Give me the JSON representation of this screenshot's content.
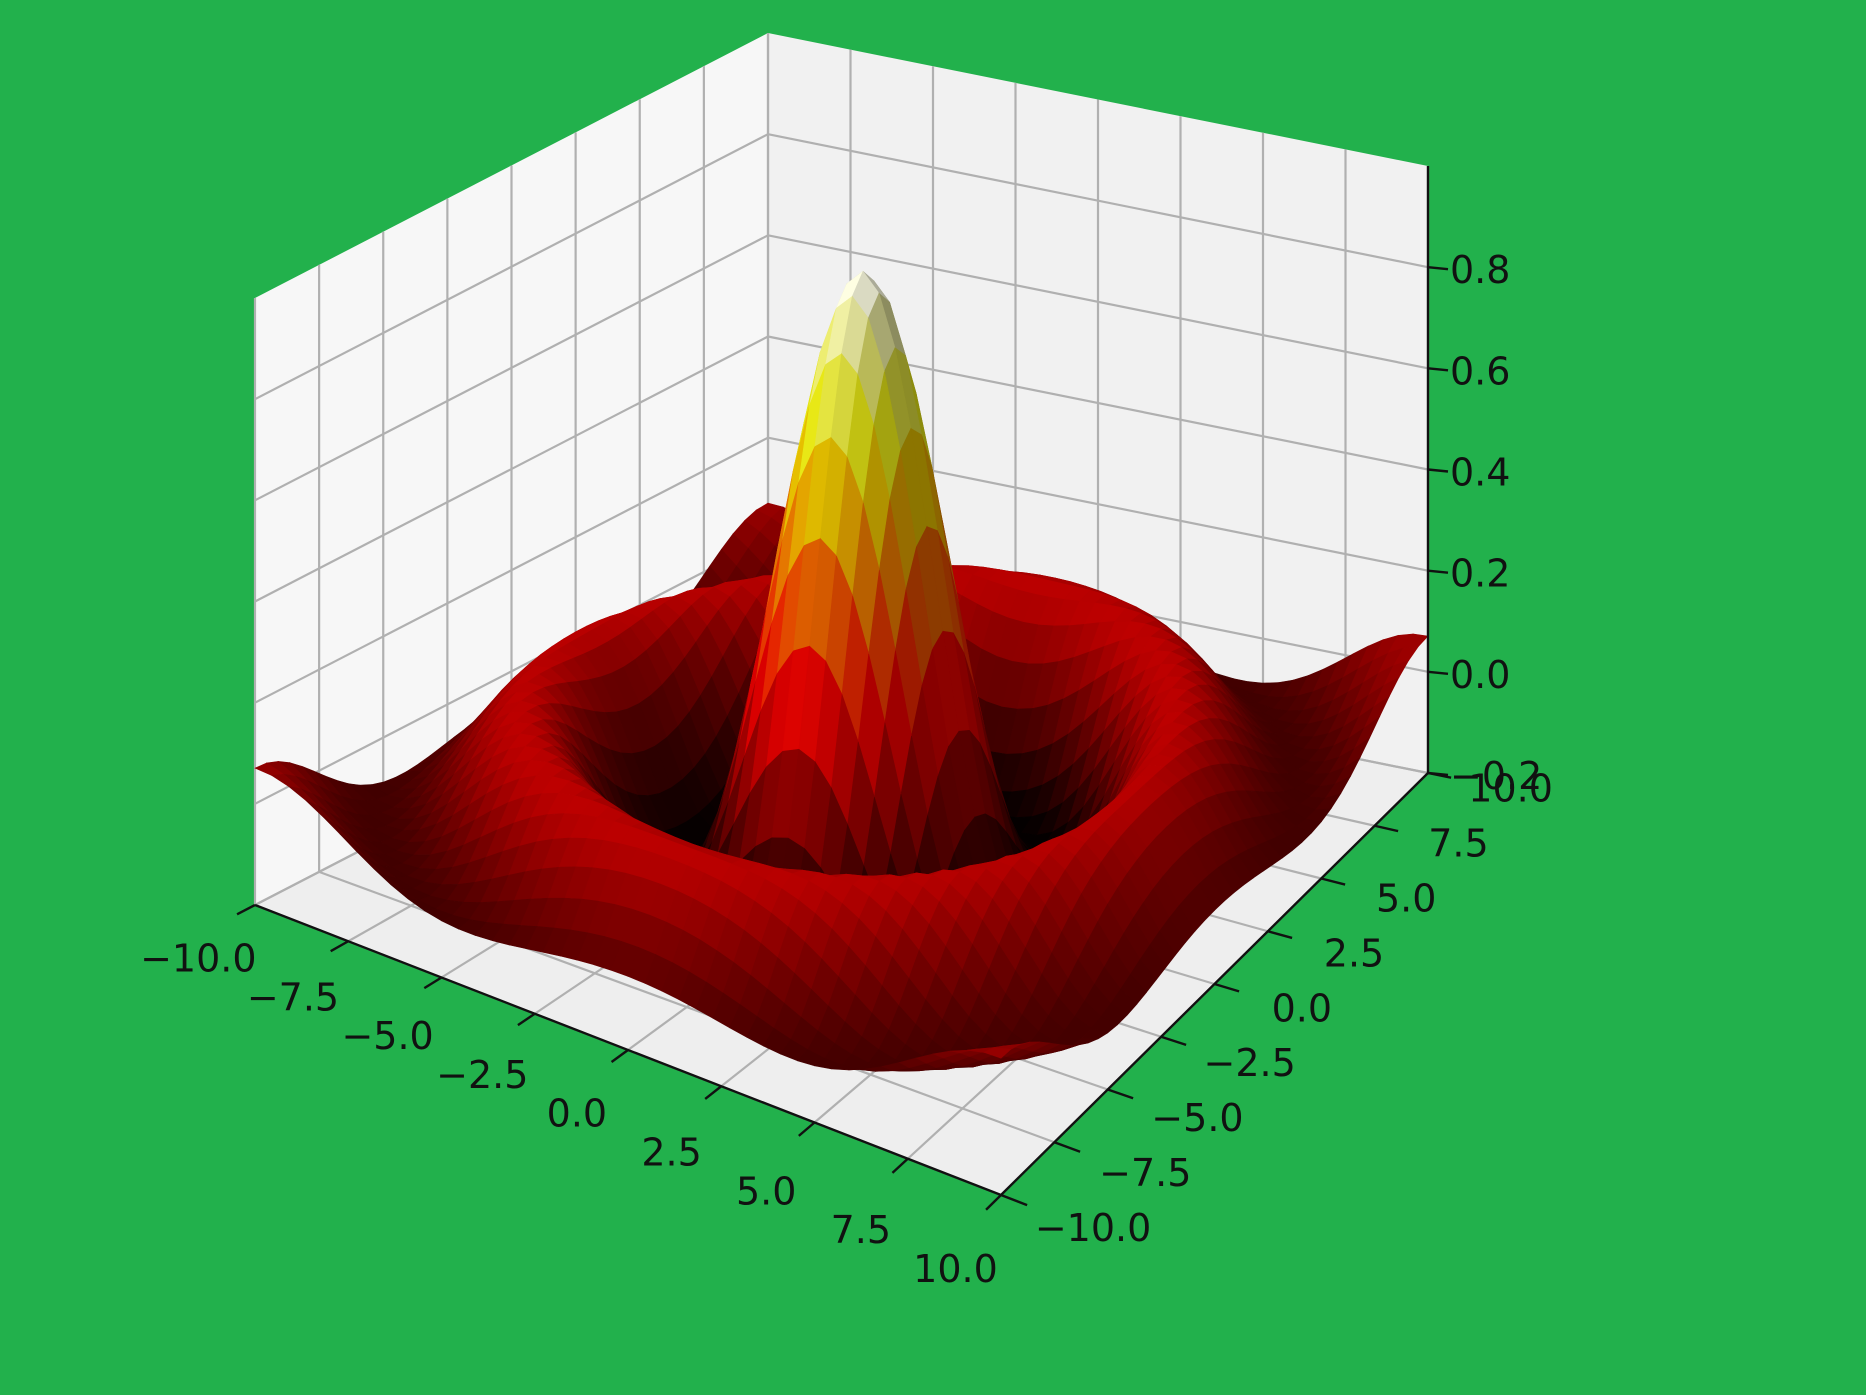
{
  "chart_data": {
    "type": "surface3d",
    "function": "sin(sqrt(x^2 + y^2)) / sqrt(x^2 + y^2)",
    "colormap": "hot",
    "background_color": "#22b14c",
    "pane_colors": {
      "left": "#f7f7f7",
      "right": "#f1f1f1",
      "floor": "#eeeeee"
    },
    "grid": true,
    "x": {
      "range": [
        -10,
        10
      ],
      "ticks": [
        -10,
        -7.5,
        -5,
        -2.5,
        0,
        2.5,
        5,
        7.5,
        10
      ],
      "tick_labels": [
        "−10.0",
        "−7.5",
        "−5.0",
        "−2.5",
        "0.0",
        "2.5",
        "5.0",
        "7.5",
        "10.0"
      ]
    },
    "y": {
      "range": [
        -10,
        10
      ],
      "ticks": [
        -10,
        -7.5,
        -5,
        -2.5,
        0,
        2.5,
        5,
        7.5,
        10
      ],
      "tick_labels": [
        "−10.0",
        "−7.5",
        "−5.0",
        "−2.5",
        "0.0",
        "2.5",
        "5.0",
        "7.5",
        "10.0"
      ]
    },
    "z": {
      "range": [
        -0.2,
        1.0
      ],
      "ticks": [
        -0.2,
        0.0,
        0.2,
        0.4,
        0.6,
        0.8
      ],
      "tick_labels": [
        "−0.2",
        "0.0",
        "0.2",
        "0.4",
        "0.6",
        "0.8"
      ]
    },
    "title": "",
    "xlabel": "",
    "ylabel": "",
    "zlabel": ""
  }
}
